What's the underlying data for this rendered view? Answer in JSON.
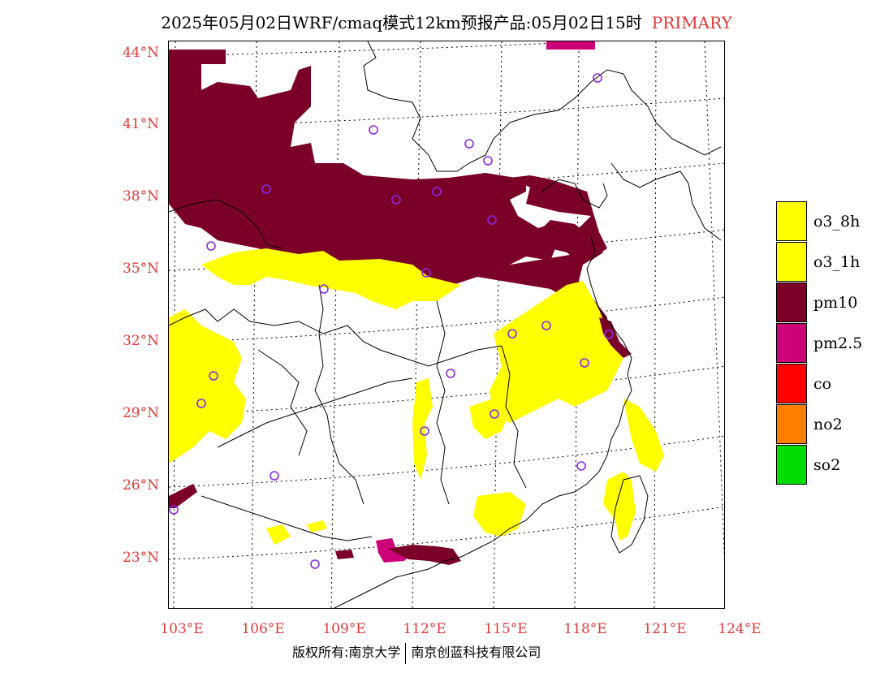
{
  "title": {
    "main": "2025年05月02日WRF/cmaq模式12km预报产品:05月02日15时",
    "tag": "PRIMARY"
  },
  "axes": {
    "lat_labels": [
      "44°N",
      "41°N",
      "38°N",
      "35°N",
      "32°N",
      "29°N",
      "26°N",
      "23°N"
    ],
    "lon_labels": [
      "103°E",
      "106°E",
      "109°E",
      "112°E",
      "115°E",
      "118°E",
      "121°E",
      "124°E"
    ]
  },
  "legend": [
    {
      "label": "o3_8h",
      "color": "#ffff00"
    },
    {
      "label": "o3_1h",
      "color": "#ffff00"
    },
    {
      "label": "pm10",
      "color": "#7b0028"
    },
    {
      "label": "pm2.5",
      "color": "#cc0077"
    },
    {
      "label": "co",
      "color": "#ff0000"
    },
    {
      "label": "no2",
      "color": "#ff7f00"
    },
    {
      "label": "so2",
      "color": "#00dd00"
    }
  ],
  "colors": {
    "label_red": "#e03a3a",
    "station_marker": "#8a2be2",
    "o3": "#ffff00",
    "pm10": "#7b0028",
    "pm25": "#cc0077"
  },
  "footer": {
    "left": "版权所有:南京大学",
    "right": "南京创蓝科技有限公司"
  }
}
